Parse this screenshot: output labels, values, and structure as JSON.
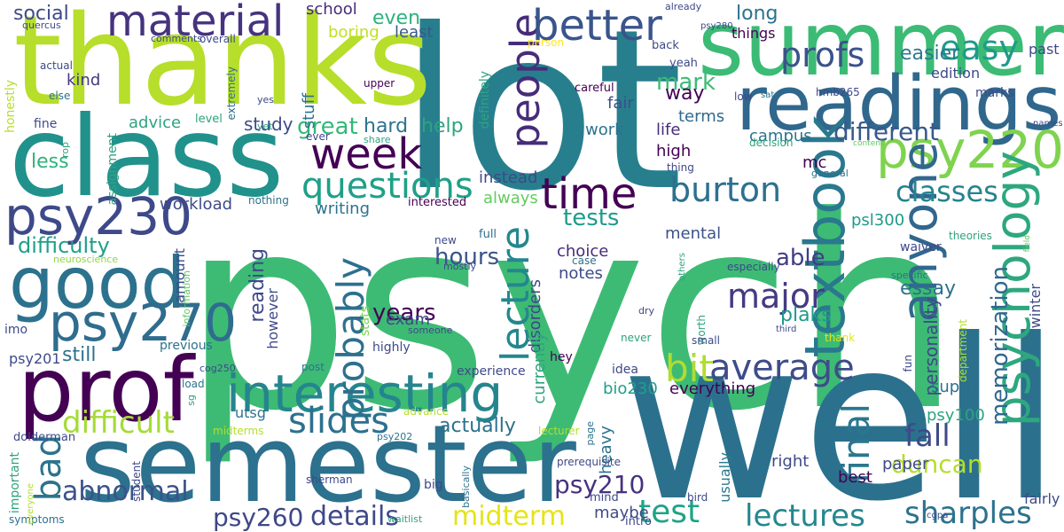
{
  "words": [
    {
      "text": "psych",
      "color": "#3dbb74"
    },
    {
      "text": "lot",
      "color": "#277f8e"
    },
    {
      "text": "well",
      "color": "#2b718e"
    },
    {
      "text": "thanks",
      "color": "#b6de2b"
    },
    {
      "text": "semester",
      "color": "#2c718e"
    },
    {
      "text": "class",
      "color": "#21918c"
    },
    {
      "text": "summer",
      "color": "#3bbb75"
    },
    {
      "text": "readings",
      "color": "#30678d"
    },
    {
      "text": "prof",
      "color": "#440154"
    },
    {
      "text": "good",
      "color": "#2c728e"
    },
    {
      "text": "psy230",
      "color": "#3e4989"
    },
    {
      "text": "psy270",
      "color": "#2f6c8e"
    },
    {
      "text": "psy220",
      "color": "#7fd34e"
    },
    {
      "text": "textbook",
      "color": "#2a788e"
    },
    {
      "text": "psychology",
      "color": "#2ea77f"
    },
    {
      "text": "anyone",
      "color": "#31678e"
    },
    {
      "text": "interesting",
      "color": "#25858e"
    },
    {
      "text": "people",
      "color": "#472c7a"
    },
    {
      "text": "better",
      "color": "#3a548c"
    },
    {
      "text": "material",
      "color": "#46337e"
    },
    {
      "text": "week",
      "color": "#440154"
    },
    {
      "text": "time",
      "color": "#440154"
    },
    {
      "text": "questions",
      "color": "#1fa088"
    },
    {
      "text": "lecture",
      "color": "#24878e"
    },
    {
      "text": "probably",
      "color": "#2d708e"
    },
    {
      "text": "bit",
      "color": "#b0dd2f"
    },
    {
      "text": "average",
      "color": "#3e4c8a"
    },
    {
      "text": "burton",
      "color": "#2d708e"
    },
    {
      "text": "classes",
      "color": "#25848e"
    },
    {
      "text": "major",
      "color": "#443a83"
    },
    {
      "text": "profs",
      "color": "#3b528b"
    },
    {
      "text": "easy",
      "color": "#1e9b8a"
    },
    {
      "text": "final",
      "color": "#2a768e"
    },
    {
      "text": "slides",
      "color": "#2c718e"
    },
    {
      "text": "bad",
      "color": "#2c738e"
    },
    {
      "text": "difficult",
      "color": "#a5db36"
    },
    {
      "text": "abnormal",
      "color": "#3b528b"
    },
    {
      "text": "details",
      "color": "#3f4889"
    },
    {
      "text": "midterm",
      "color": "#e5e419"
    },
    {
      "text": "test",
      "color": "#20a386"
    },
    {
      "text": "lectures",
      "color": "#24878e"
    },
    {
      "text": "sharples",
      "color": "#2c728e"
    },
    {
      "text": "fall",
      "color": "#3e4a89"
    },
    {
      "text": "duncan",
      "color": "#b5de2b"
    },
    {
      "text": "psy260",
      "color": "#3f4788"
    },
    {
      "text": "psy210",
      "color": "#46327e"
    },
    {
      "text": "different",
      "color": "#38598c"
    },
    {
      "text": "great",
      "color": "#35b779"
    },
    {
      "text": "memorization",
      "color": "#31688e"
    },
    {
      "text": "years",
      "color": "#440154"
    },
    {
      "text": "hours",
      "color": "#3a548c"
    },
    {
      "text": "tests",
      "color": "#1e9b8a"
    },
    {
      "text": "mark",
      "color": "#3bbb75"
    },
    {
      "text": "essay",
      "color": "#2c718e"
    },
    {
      "text": "plaks",
      "color": "#1f9a8a"
    },
    {
      "text": "able",
      "color": "#433d84"
    },
    {
      "text": "difficulty",
      "color": "#1fa088"
    },
    {
      "text": "reading",
      "color": "#3e4989"
    },
    {
      "text": "actually",
      "color": "#2c718e"
    },
    {
      "text": "still",
      "color": "#2c728e"
    },
    {
      "text": "social",
      "color": "#3e4a89"
    },
    {
      "text": "even",
      "color": "#2db27d"
    },
    {
      "text": "long",
      "color": "#2c728e"
    },
    {
      "text": "easier",
      "color": "#2a788e"
    },
    {
      "text": "way",
      "color": "#440154"
    },
    {
      "text": "hard",
      "color": "#2c738e"
    },
    {
      "text": "help",
      "color": "#2ea37f"
    },
    {
      "text": "less",
      "color": "#2eb37c"
    },
    {
      "text": "study",
      "color": "#3e4a89"
    },
    {
      "text": "advice",
      "color": "#2ea37f"
    },
    {
      "text": "kind",
      "color": "#453781"
    },
    {
      "text": "stuff",
      "color": "#2c728e"
    },
    {
      "text": "boring",
      "color": "#c2df23"
    },
    {
      "text": "least",
      "color": "#38598c"
    },
    {
      "text": "school",
      "color": "#472c7a"
    },
    {
      "text": "fair",
      "color": "#3c4f8a"
    },
    {
      "text": "work",
      "color": "#2c728e"
    },
    {
      "text": "high",
      "color": "#440154"
    },
    {
      "text": "life",
      "color": "#472c7a"
    },
    {
      "text": "terms",
      "color": "#31688e"
    },
    {
      "text": "campus",
      "color": "#2c728e"
    },
    {
      "text": "mc",
      "color": "#440154"
    },
    {
      "text": "workload",
      "color": "#3e4a89"
    },
    {
      "text": "writing",
      "color": "#2c728e"
    },
    {
      "text": "instead",
      "color": "#3e4a89"
    },
    {
      "text": "always",
      "color": "#63cb5f"
    },
    {
      "text": "choice",
      "color": "#472c7a"
    },
    {
      "text": "notes",
      "color": "#3e4a89"
    },
    {
      "text": "mental",
      "color": "#3b528b"
    },
    {
      "text": "psl300",
      "color": "#1f9a8a"
    },
    {
      "text": "things",
      "color": "#440154"
    },
    {
      "text": "edition",
      "color": "#3e4989"
    },
    {
      "text": "marks",
      "color": "#3e4989"
    },
    {
      "text": "past",
      "color": "#3e4a89"
    },
    {
      "text": "winter",
      "color": "#3e4a89"
    },
    {
      "text": "personality",
      "color": "#3e4989"
    },
    {
      "text": "super",
      "color": "#2c728e"
    },
    {
      "text": "everything",
      "color": "#440154"
    },
    {
      "text": "bio230",
      "color": "#1fa088"
    },
    {
      "text": "exam",
      "color": "#3e4989"
    },
    {
      "text": "disorders",
      "color": "#3e4989"
    },
    {
      "text": "currently",
      "color": "#2ea37f"
    },
    {
      "text": "psy100",
      "color": "#2ea37f"
    },
    {
      "text": "right",
      "color": "#3e4a89"
    },
    {
      "text": "best",
      "color": "#440154"
    },
    {
      "text": "paper",
      "color": "#3e4a89"
    },
    {
      "text": "usually",
      "color": "#2a788e"
    },
    {
      "text": "fairly",
      "color": "#3e4a89"
    },
    {
      "text": "maybe",
      "color": "#3e4a89"
    },
    {
      "text": "heavy",
      "color": "#2c728e"
    },
    {
      "text": "amount",
      "color": "#3e4a89"
    },
    {
      "text": "however",
      "color": "#3e4989"
    },
    {
      "text": "psy201",
      "color": "#3e4989"
    },
    {
      "text": "previous",
      "color": "#2c728e"
    },
    {
      "text": "utsg",
      "color": "#2c728e"
    },
    {
      "text": "highly",
      "color": "#3e4a89"
    },
    {
      "text": "experience",
      "color": "#3e4989"
    },
    {
      "text": "idea",
      "color": "#3e4989"
    },
    {
      "text": "hey",
      "color": "#440154"
    },
    {
      "text": "imo",
      "color": "#3e4989"
    },
    {
      "text": "information",
      "color": "#5ec962"
    },
    {
      "text": "neuroscience",
      "color": "#8fd744"
    },
    {
      "text": "stats",
      "color": "#7ad151"
    },
    {
      "text": "someone",
      "color": "#3e4989"
    },
    {
      "text": "mostly",
      "color": "#3e4989"
    },
    {
      "text": "new",
      "color": "#3e4989"
    },
    {
      "text": "full",
      "color": "#2c728e"
    },
    {
      "text": "interested",
      "color": "#440154"
    },
    {
      "text": "nothing",
      "color": "#2c728e"
    },
    {
      "text": "case",
      "color": "#2c728e"
    },
    {
      "text": "honestly",
      "color": "#b5de2b"
    },
    {
      "text": "fine",
      "color": "#3e4989"
    },
    {
      "text": "rop",
      "color": "#2ea37f"
    },
    {
      "text": "assignment",
      "color": "#2ea37f"
    },
    {
      "text": "level",
      "color": "#2ea37f"
    },
    {
      "text": "else",
      "color": "#2c728e"
    },
    {
      "text": "actual",
      "color": "#3e4989"
    },
    {
      "text": "quercus",
      "color": "#3e4989"
    },
    {
      "text": "comments",
      "color": "#3e4989"
    },
    {
      "text": "overall",
      "color": "#3e4989"
    },
    {
      "text": "extremely",
      "color": "#2c728e"
    },
    {
      "text": "yes",
      "color": "#3e4989"
    },
    {
      "text": "yet",
      "color": "#2ea37f"
    },
    {
      "text": "upper",
      "color": "#440154"
    },
    {
      "text": "careful",
      "color": "#440154"
    },
    {
      "text": "definitely",
      "color": "#2ea37f"
    },
    {
      "text": "ever",
      "color": "#3e4989"
    },
    {
      "text": "share",
      "color": "#2ea37f"
    },
    {
      "text": "already",
      "color": "#3e4989"
    },
    {
      "text": "person",
      "color": "#fde725"
    },
    {
      "text": "psy280",
      "color": "#3e4989"
    },
    {
      "text": "back",
      "color": "#3e4989"
    },
    {
      "text": "yeah",
      "color": "#3e4989"
    },
    {
      "text": "low",
      "color": "#3e4989"
    },
    {
      "text": "sato",
      "color": "#2c728e"
    },
    {
      "text": "hmb265",
      "color": "#3e4989"
    },
    {
      "text": "decision",
      "color": "#2ea37f"
    },
    {
      "text": "content",
      "color": "#5ec962"
    },
    {
      "text": "names",
      "color": "#3e4989"
    },
    {
      "text": "thing",
      "color": "#3e4989"
    },
    {
      "text": "general",
      "color": "#2c728e"
    },
    {
      "text": "theories",
      "color": "#2ea37f"
    },
    {
      "text": "field",
      "color": "#5ec962"
    },
    {
      "text": "waiver",
      "color": "#3e4989"
    },
    {
      "text": "especially",
      "color": "#3e4989"
    },
    {
      "text": "specific",
      "color": "#2c728e"
    },
    {
      "text": "others",
      "color": "#2ea37f"
    },
    {
      "text": "dry",
      "color": "#3e4989"
    },
    {
      "text": "worth",
      "color": "#2ea37f"
    },
    {
      "text": "small",
      "color": "#3e4989"
    },
    {
      "text": "third",
      "color": "#3e4989"
    },
    {
      "text": "department",
      "color": "#b5de2b"
    },
    {
      "text": "never",
      "color": "#2ea37f"
    },
    {
      "text": "thank",
      "color": "#e5e419"
    },
    {
      "text": "fun",
      "color": "#3e4989"
    },
    {
      "text": "load",
      "color": "#2c728e"
    },
    {
      "text": "sg",
      "color": "#2ea37f"
    },
    {
      "text": "cog250",
      "color": "#3e4989"
    },
    {
      "text": "post",
      "color": "#2c728e"
    },
    {
      "text": "advance",
      "color": "#b5de2b"
    },
    {
      "text": "midterms",
      "color": "#b5de2b"
    },
    {
      "text": "lecturer",
      "color": "#b5de2b"
    },
    {
      "text": "page",
      "color": "#2c728e"
    },
    {
      "text": "dolderman",
      "color": "#3e4989"
    },
    {
      "text": "psy202",
      "color": "#2c728e"
    },
    {
      "text": "prerequisite",
      "color": "#3e4989"
    },
    {
      "text": "sherman",
      "color": "#3e4989"
    },
    {
      "text": "basically",
      "color": "#2c728e"
    },
    {
      "text": "big",
      "color": "#3e4989"
    },
    {
      "text": "mind",
      "color": "#3e4989"
    },
    {
      "text": "intro",
      "color": "#3e4989"
    },
    {
      "text": "bird",
      "color": "#3e4989"
    },
    {
      "text": "requirements",
      "color": "#2c728e"
    },
    {
      "text": "cgpa",
      "color": "#3e4989"
    },
    {
      "text": "important",
      "color": "#2ea37f"
    },
    {
      "text": "symptoms",
      "color": "#2c728e"
    },
    {
      "text": "everyone",
      "color": "#b5de2b"
    },
    {
      "text": "student",
      "color": "#3e4989"
    },
    {
      "text": "waitlist",
      "color": "#2ea37f"
    }
  ]
}
